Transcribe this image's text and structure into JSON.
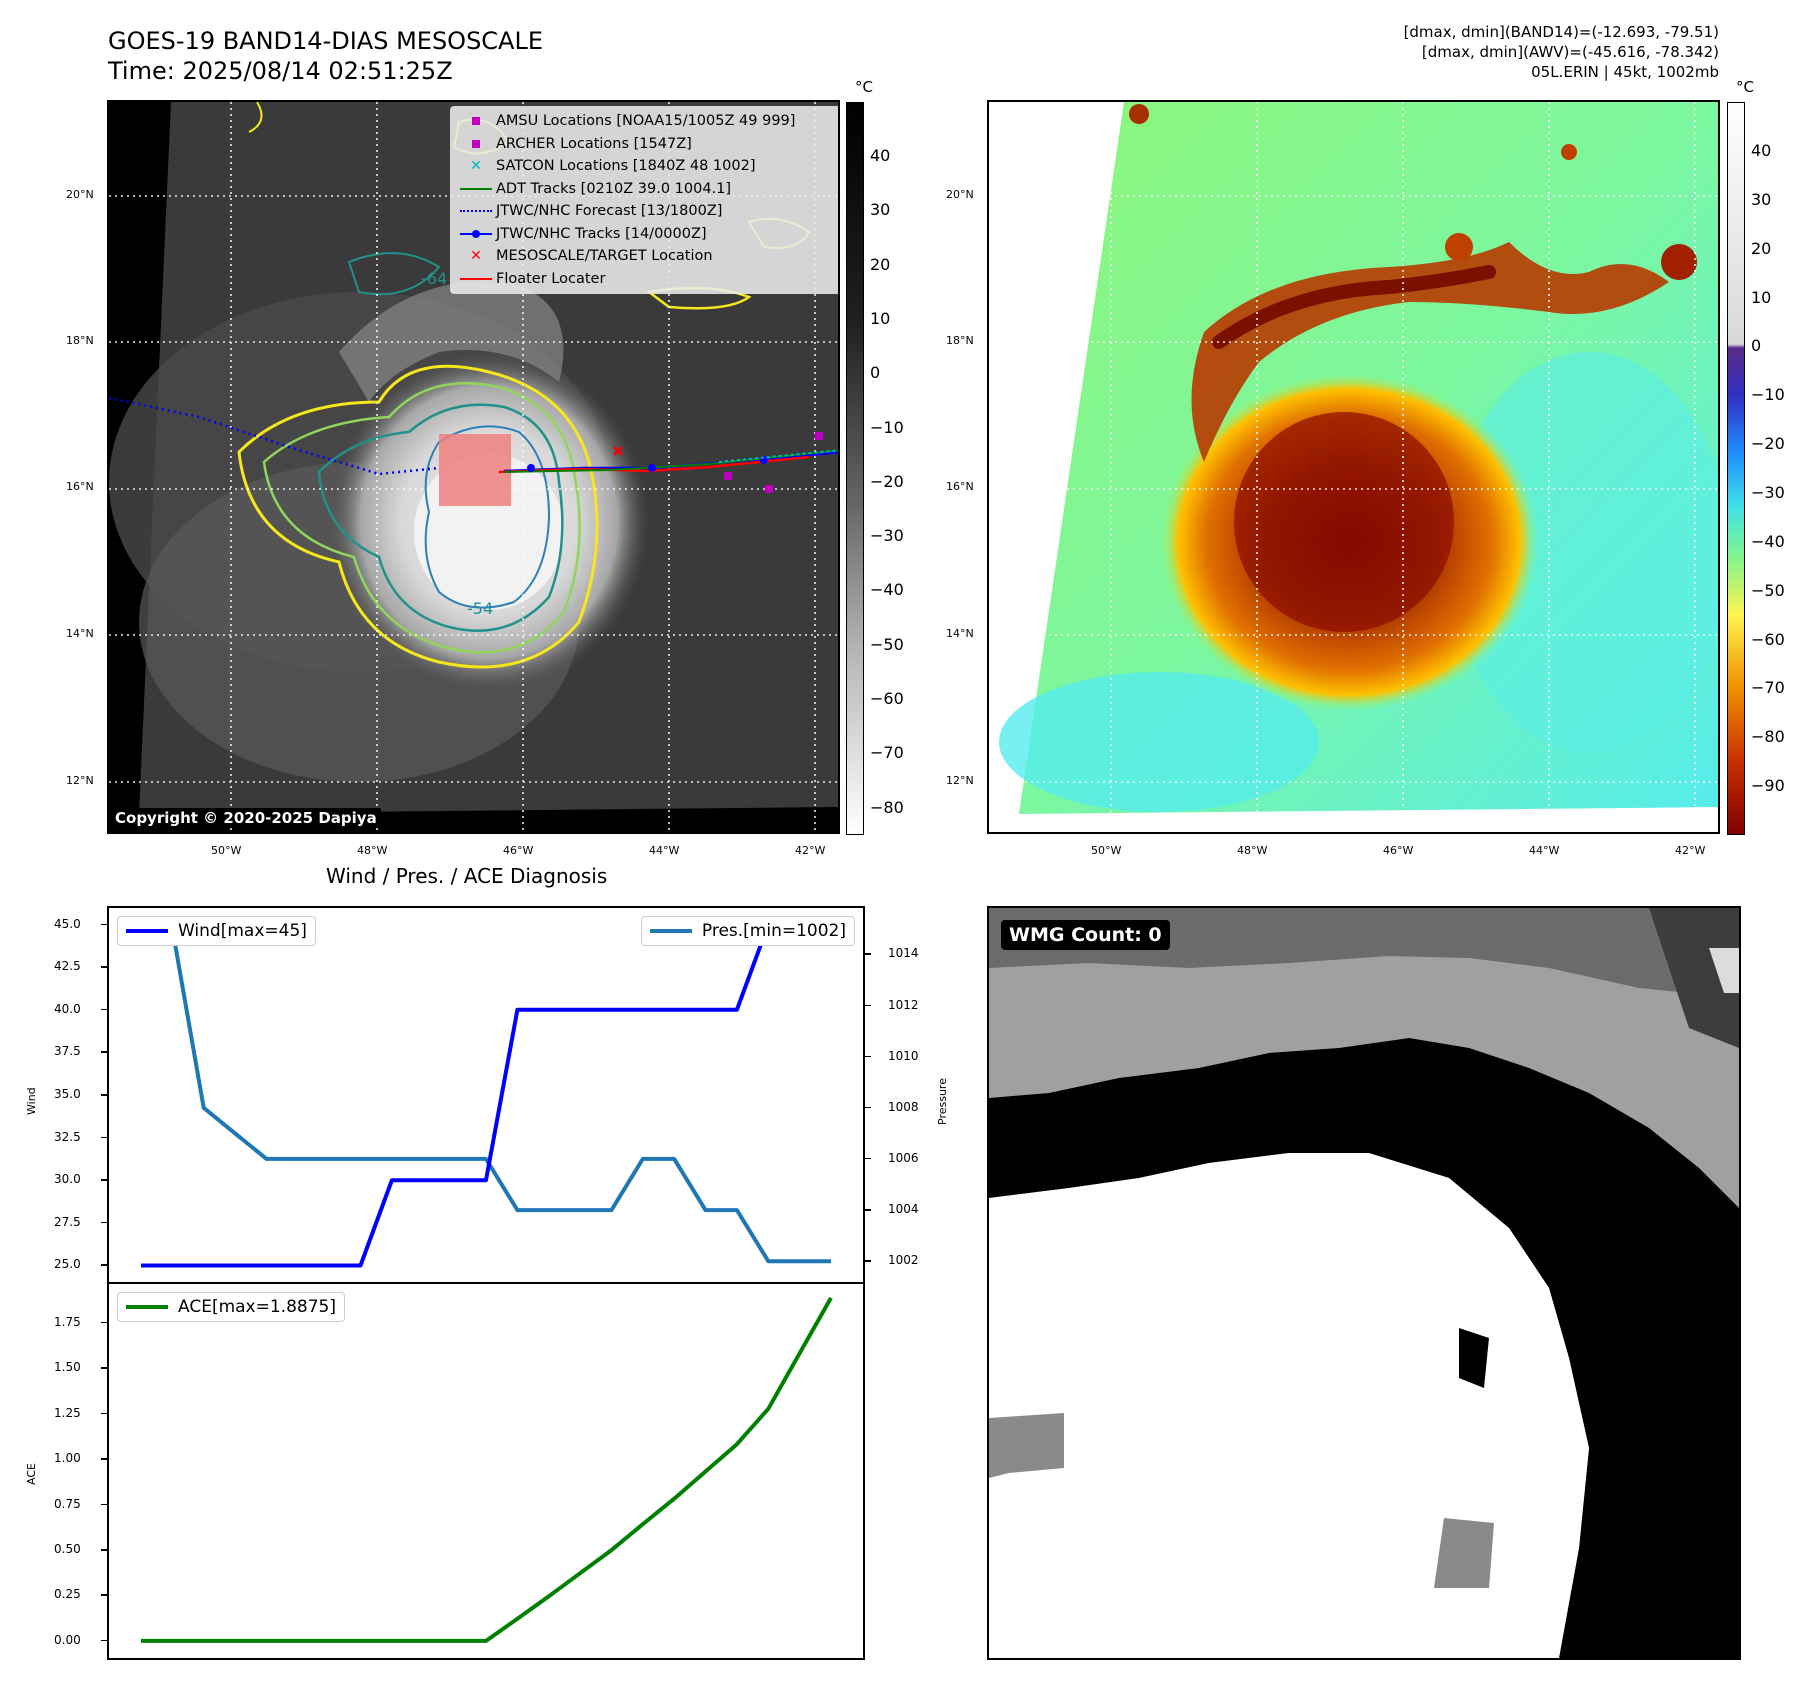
{
  "header": {
    "title_line1": "GOES-19 BAND14-DIAS MESOSCALE",
    "title_line2": "Time: 2025/08/14 02:51:25Z",
    "info_line1": "[dmax, dmin](BAND14)=(-12.693, -79.51)",
    "info_line2": "[dmax, dmin](AWV)=(-45.616, -78.342)",
    "info_line3": "05L.ERIN | 45kt, 1002mb"
  },
  "map": {
    "lat_labels": [
      "20°N",
      "18°N",
      "16°N",
      "14°N",
      "12°N"
    ],
    "lon_labels": [
      "50°W",
      "48°W",
      "46°W",
      "44°W",
      "42°W"
    ],
    "unit": "°C",
    "copyright": "Copyright © 2020-2025 Dapiya",
    "contour_labels": [
      "-64",
      "-54",
      "-54",
      "-64"
    ],
    "legend": [
      {
        "label": "AMSU Locations [NOAA15/1005Z 49 999]",
        "symbol": "square",
        "color": "#c000c0"
      },
      {
        "label": "ARCHER Locations [1547Z]",
        "symbol": "square",
        "color": "#c000c0"
      },
      {
        "label": "SATCON Locations [1840Z 48 1002]",
        "symbol": "x",
        "color": "#00b8c8"
      },
      {
        "label": "ADT Tracks [0210Z 39.0 1004.1]",
        "symbol": "line",
        "color": "#008000"
      },
      {
        "label": "JTWC/NHC Forecast [13/1800Z]",
        "symbol": "dotted",
        "color": "#0000ff"
      },
      {
        "label": "JTWC/NHC Tracks [14/0000Z]",
        "symbol": "line-dot",
        "color": "#0000ff"
      },
      {
        "label": "MESOSCALE/TARGET Location",
        "symbol": "x",
        "color": "#ff0000"
      },
      {
        "label": "Floater Locater",
        "symbol": "line",
        "color": "#ff0000"
      }
    ],
    "left_colorbar_ticks": [
      "40",
      "30",
      "20",
      "10",
      "0",
      "−10",
      "−20",
      "−30",
      "−40",
      "−50",
      "−60",
      "−70",
      "−80"
    ],
    "right_colorbar_ticks": [
      "40",
      "30",
      "20",
      "10",
      "0",
      "−10",
      "−20",
      "−30",
      "−40",
      "−50",
      "−60",
      "−70",
      "−80",
      "−90"
    ]
  },
  "diagnosis": {
    "title": "Wind / Pres. / ACE Diagnosis",
    "wind_legend": "Wind[max=45]",
    "pres_legend": "Pres.[min=1002]",
    "ace_legend": "ACE[max=1.8875]",
    "wind_axis_label": "Wind",
    "pres_axis_label": "Pressure",
    "ace_axis_label": "ACE",
    "wind_color": "#0000ff",
    "pres_color": "#1f77b4",
    "ace_color": "#008000"
  },
  "wmg": {
    "count_label": "WMG Count: 0"
  },
  "chart_data": [
    {
      "type": "line",
      "title": "Wind / Pres. / ACE Diagnosis",
      "x": [
        0,
        1,
        2,
        3,
        4,
        5,
        6,
        7,
        8,
        9,
        10,
        11,
        12,
        13,
        14,
        15,
        16,
        17,
        18,
        19,
        20,
        21,
        22
      ],
      "series": [
        {
          "name": "Wind[max=45]",
          "axis": "left",
          "values": [
            25,
            25,
            25,
            25,
            25,
            25,
            25,
            25,
            30,
            30,
            30,
            30,
            40,
            40,
            40,
            40,
            40,
            40,
            40,
            40,
            45,
            45,
            45
          ]
        },
        {
          "name": "Pres.[min=1002]",
          "axis": "right",
          "values": [
            1015,
            1015,
            1008,
            1007,
            1006,
            1006,
            1006,
            1006,
            1006,
            1006,
            1006,
            1006,
            1004,
            1004,
            1004,
            1004,
            1006,
            1006,
            1004,
            1004,
            1002,
            1002,
            1002
          ]
        }
      ],
      "yticks_left": [
        25.0,
        27.5,
        30.0,
        32.5,
        35.0,
        37.5,
        40.0,
        42.5,
        45.0
      ],
      "yticks_right": [
        1002,
        1004,
        1006,
        1008,
        1010,
        1012,
        1014
      ],
      "ylim_left": [
        24.5,
        45.5
      ],
      "ylim_right": [
        1001.5,
        1015.5
      ],
      "ylabel": "Wind",
      "ylabel_right": "Pressure"
    },
    {
      "type": "line",
      "x": [
        0,
        1,
        2,
        3,
        4,
        5,
        6,
        7,
        8,
        9,
        10,
        11,
        12,
        13,
        14,
        15,
        16,
        17,
        18,
        19,
        20,
        21,
        22
      ],
      "series": [
        {
          "name": "ACE[max=1.8875]",
          "values": [
            0,
            0,
            0,
            0,
            0,
            0,
            0,
            0,
            0,
            0,
            0,
            0,
            0.1225,
            0.245,
            0.3725,
            0.5,
            0.6425,
            0.7825,
            0.9325,
            1.0825,
            1.2775,
            1.5825,
            1.8875
          ]
        }
      ],
      "yticks": [
        0.0,
        0.25,
        0.5,
        0.75,
        1.0,
        1.25,
        1.5,
        1.75
      ],
      "ylim": [
        -0.05,
        1.92
      ],
      "ylabel": "ACE"
    }
  ]
}
